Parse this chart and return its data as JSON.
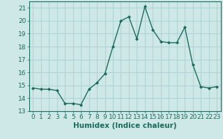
{
  "x": [
    0,
    1,
    2,
    3,
    4,
    5,
    6,
    7,
    8,
    9,
    10,
    11,
    12,
    13,
    14,
    15,
    16,
    17,
    18,
    19,
    20,
    21,
    22,
    23
  ],
  "y": [
    14.8,
    14.7,
    14.7,
    14.6,
    13.6,
    13.6,
    13.5,
    14.7,
    15.2,
    15.9,
    18.0,
    20.0,
    20.3,
    18.6,
    21.1,
    19.3,
    18.4,
    18.3,
    18.3,
    19.5,
    16.6,
    14.9,
    14.8,
    14.9
  ],
  "line_color": "#1a6b5a",
  "marker": "D",
  "marker_size": 2.0,
  "line_width": 1.0,
  "xlabel": "Humidex (Indice chaleur)",
  "xlim": [
    -0.5,
    23.5
  ],
  "ylim": [
    13,
    21.5
  ],
  "yticks": [
    13,
    14,
    15,
    16,
    17,
    18,
    19,
    20,
    21
  ],
  "xticks": [
    0,
    1,
    2,
    3,
    4,
    5,
    6,
    7,
    8,
    9,
    10,
    11,
    12,
    13,
    14,
    15,
    16,
    17,
    18,
    19,
    20,
    21,
    22,
    23
  ],
  "bg_color": "#cde8e6",
  "grid_color": "#b0d4d2",
  "tick_label_size": 6.5,
  "xlabel_size": 7.5
}
